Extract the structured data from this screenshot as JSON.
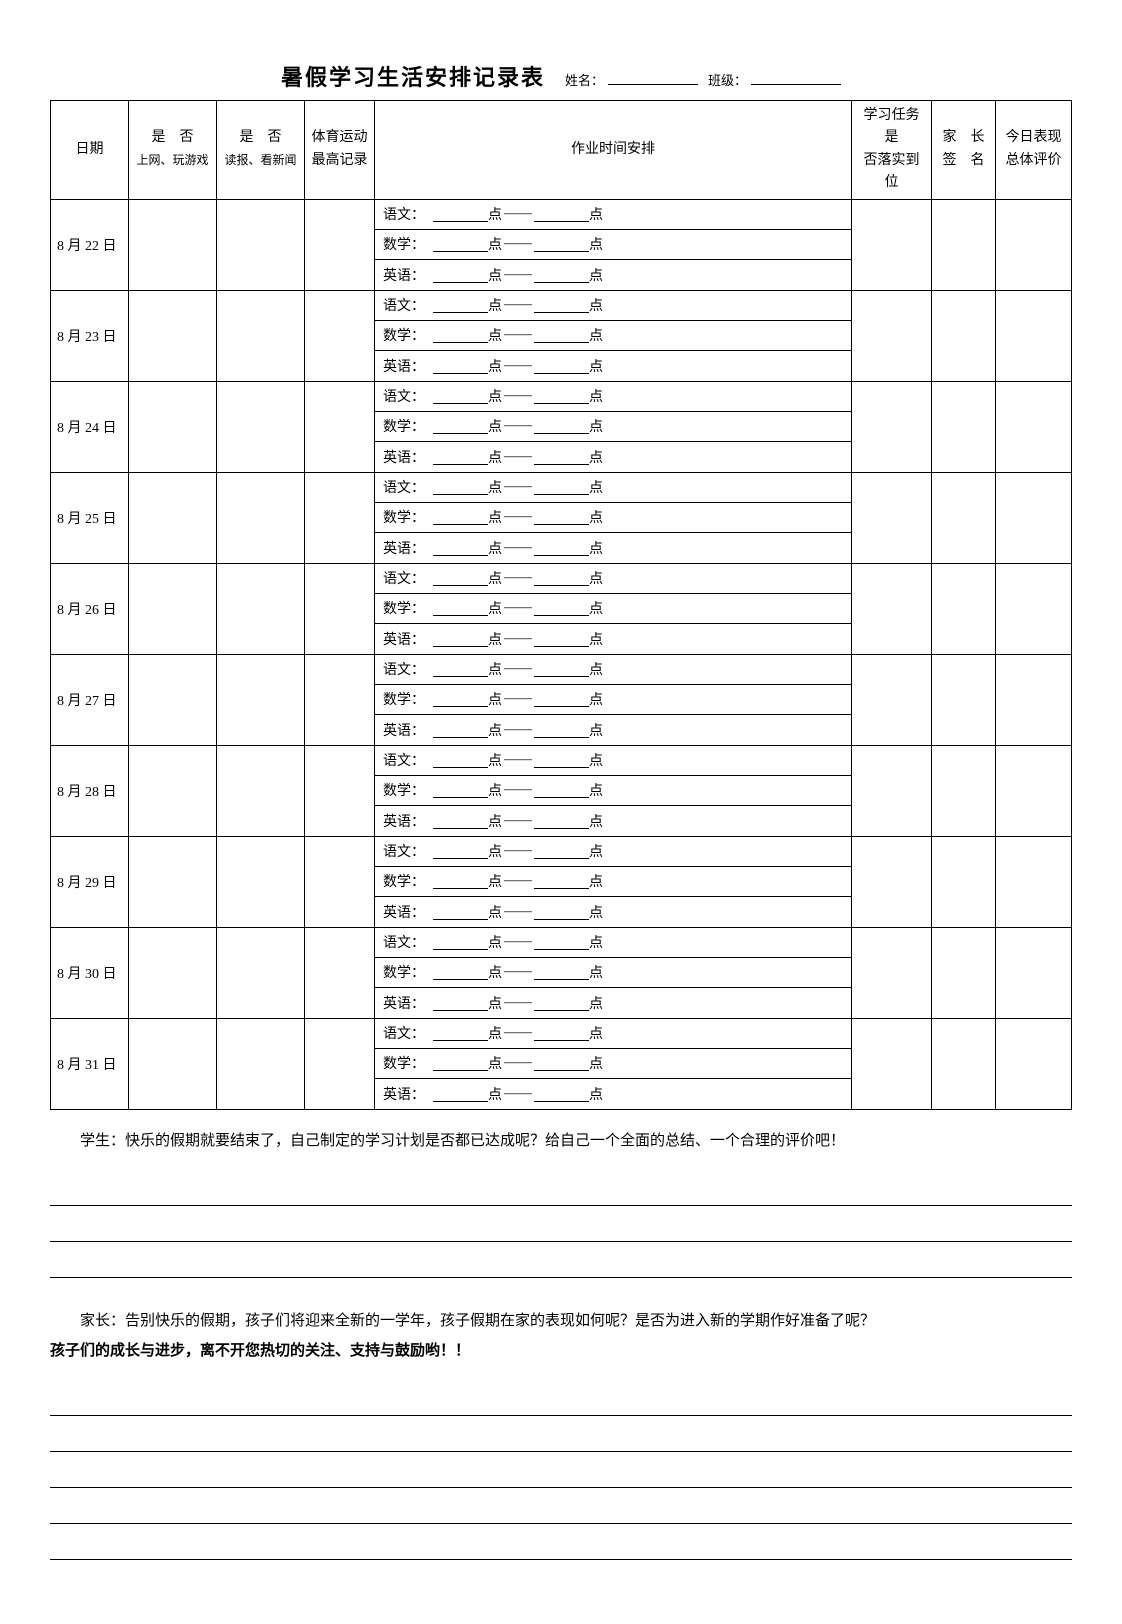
{
  "title": "暑假学习生活安排记录表",
  "name_label": "姓名：",
  "class_label": "班级：",
  "headers": {
    "date": "日期",
    "yn1_top": "是　否",
    "yn1_sub": "上网、玩游戏",
    "yn2_top": "是　否",
    "yn2_sub": "读报、看新闻",
    "sport_top": "体育运动",
    "sport_sub": "最高记录",
    "homework": "作业时间安排",
    "task_top": "学习任务是",
    "task_sub": "否落实到位",
    "parent_top": "家　长",
    "parent_sub": "签　名",
    "eval_top": "今日表现",
    "eval_sub": "总体评价"
  },
  "subjects": {
    "chinese": "语文：",
    "math": "数学：",
    "english": "英语："
  },
  "time_unit": "点",
  "time_dash": "——",
  "dates": [
    "8 月 22 日",
    "8 月 23 日",
    "8 月 24 日",
    "8 月 25 日",
    "8 月 26 日",
    "8 月 27 日",
    "8 月 28 日",
    "8 月 29 日",
    "8 月 30 日",
    "8 月 31 日"
  ],
  "footer": {
    "student_prefix": "学生：",
    "student_text": "快乐的假期就要结束了，自己制定的学习计划是否都已达成呢？给自己一个全面的总结、一个合理的评价吧！",
    "parent_prefix": "家长：",
    "parent_text": "告别快乐的假期，孩子们将迎来全新的一学年，孩子假期在家的表现如何呢？是否为进入新的学期作好准备了呢？",
    "parent_bold": "孩子们的成长与进步，离不开您热切的关注、支持与鼓励哟！！"
  },
  "student_lines": 3,
  "parent_lines": 5
}
